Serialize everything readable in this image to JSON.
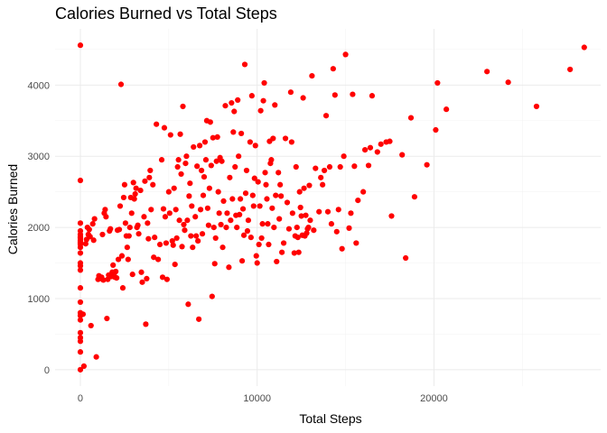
{
  "chart_data": {
    "type": "scatter",
    "title": "Calories Burned vs Total Steps",
    "xlabel": "Total Steps",
    "ylabel": "Calories Burned",
    "xlim": [
      -1430,
      29430
    ],
    "ylim": [
      -230,
      4790
    ],
    "xticks": [
      0,
      10000,
      20000
    ],
    "yticks": [
      0,
      1000,
      2000,
      3000,
      4000
    ],
    "grid": true,
    "point_color": "#ff0000",
    "points": [
      [
        0,
        4560
      ],
      [
        0,
        2660
      ],
      [
        0,
        2060
      ],
      [
        0,
        1950
      ],
      [
        0,
        1900
      ],
      [
        0,
        1870
      ],
      [
        0,
        1850
      ],
      [
        0,
        1820
      ],
      [
        0,
        1800
      ],
      [
        0,
        1780
      ],
      [
        0,
        1760
      ],
      [
        0,
        1720
      ],
      [
        0,
        1640
      ],
      [
        0,
        1500
      ],
      [
        0,
        1460
      ],
      [
        0,
        1400
      ],
      [
        0,
        1150
      ],
      [
        0,
        950
      ],
      [
        0,
        800
      ],
      [
        0,
        760
      ],
      [
        0,
        700
      ],
      [
        0,
        520
      ],
      [
        0,
        450
      ],
      [
        0,
        400
      ],
      [
        0,
        250
      ],
      [
        0,
        0
      ],
      [
        150,
        780
      ],
      [
        200,
        50
      ],
      [
        300,
        1770
      ],
      [
        350,
        1830
      ],
      [
        400,
        2000
      ],
      [
        450,
        1900
      ],
      [
        500,
        1970
      ],
      [
        550,
        1870
      ],
      [
        600,
        620
      ],
      [
        700,
        2050
      ],
      [
        750,
        1820
      ],
      [
        800,
        2120
      ],
      [
        900,
        180
      ],
      [
        1000,
        1270
      ],
      [
        1050,
        1320
      ],
      [
        1100,
        1280
      ],
      [
        1200,
        1300
      ],
      [
        1250,
        1900
      ],
      [
        1300,
        1260
      ],
      [
        1350,
        2200
      ],
      [
        1400,
        2250
      ],
      [
        1450,
        2150
      ],
      [
        1500,
        720
      ],
      [
        1550,
        1270
      ],
      [
        1600,
        1330
      ],
      [
        1650,
        1950
      ],
      [
        1700,
        1980
      ],
      [
        1750,
        1310
      ],
      [
        1800,
        1370
      ],
      [
        1850,
        1470
      ],
      [
        1900,
        1340
      ],
      [
        1950,
        1300
      ],
      [
        2000,
        1380
      ],
      [
        2050,
        1290
      ],
      [
        2100,
        1960
      ],
      [
        2150,
        1550
      ],
      [
        2200,
        1970
      ],
      [
        2250,
        2300
      ],
      [
        2300,
        4010
      ],
      [
        2350,
        1600
      ],
      [
        2400,
        1150
      ],
      [
        2450,
        2420
      ],
      [
        2500,
        2600
      ],
      [
        2550,
        2060
      ],
      [
        2600,
        1880
      ],
      [
        2650,
        1720
      ],
      [
        2700,
        1550
      ],
      [
        2750,
        1880
      ],
      [
        2800,
        2000
      ],
      [
        2850,
        2420
      ],
      [
        2900,
        2200
      ],
      [
        2950,
        1340
      ],
      [
        3000,
        2630
      ],
      [
        3050,
        2400
      ],
      [
        3100,
        2470
      ],
      [
        3150,
        2550
      ],
      [
        3200,
        2000
      ],
      [
        3250,
        2030
      ],
      [
        3300,
        1910
      ],
      [
        3400,
        2520
      ],
      [
        3450,
        1370
      ],
      [
        3500,
        1230
      ],
      [
        3600,
        2150
      ],
      [
        3650,
        2650
      ],
      [
        3700,
        640
      ],
      [
        3750,
        1280
      ],
      [
        3800,
        2060
      ],
      [
        3850,
        1840
      ],
      [
        3900,
        2700
      ],
      [
        3950,
        2800
      ],
      [
        4000,
        2250
      ],
      [
        4100,
        2600
      ],
      [
        4150,
        1580
      ],
      [
        4200,
        1860
      ],
      [
        4300,
        3450
      ],
      [
        4400,
        1550
      ],
      [
        4500,
        1760
      ],
      [
        4600,
        2950
      ],
      [
        4650,
        1300
      ],
      [
        4700,
        2260
      ],
      [
        4750,
        3400
      ],
      [
        4800,
        2150
      ],
      [
        4850,
        1780
      ],
      [
        4900,
        1270
      ],
      [
        5000,
        2500
      ],
      [
        5050,
        2200
      ],
      [
        5100,
        3300
      ],
      [
        5200,
        1810
      ],
      [
        5250,
        1750
      ],
      [
        5300,
        2550
      ],
      [
        5350,
        1480
      ],
      [
        5400,
        2250
      ],
      [
        5450,
        1850
      ],
      [
        5500,
        2850
      ],
      [
        5550,
        2950
      ],
      [
        5600,
        2100
      ],
      [
        5650,
        3310
      ],
      [
        5700,
        2750
      ],
      [
        5750,
        1730
      ],
      [
        5800,
        3700
      ],
      [
        5850,
        2040
      ],
      [
        5900,
        1960
      ],
      [
        5950,
        2900
      ],
      [
        6000,
        3000
      ],
      [
        6050,
        2100
      ],
      [
        6100,
        920
      ],
      [
        6150,
        2440
      ],
      [
        6200,
        2620
      ],
      [
        6250,
        1880
      ],
      [
        6300,
        2300
      ],
      [
        6350,
        1720
      ],
      [
        6400,
        3130
      ],
      [
        6500,
        2150
      ],
      [
        6550,
        1880
      ],
      [
        6600,
        2860
      ],
      [
        6650,
        1810
      ],
      [
        6700,
        710
      ],
      [
        6750,
        3150
      ],
      [
        6800,
        2250
      ],
      [
        6850,
        2800
      ],
      [
        6900,
        1910
      ],
      [
        6950,
        2450
      ],
      [
        7000,
        2710
      ],
      [
        7050,
        3200
      ],
      [
        7100,
        2950
      ],
      [
        7150,
        3500
      ],
      [
        7200,
        2270
      ],
      [
        7250,
        2030
      ],
      [
        7300,
        2550
      ],
      [
        7350,
        3480
      ],
      [
        7400,
        2870
      ],
      [
        7450,
        1030
      ],
      [
        7500,
        3260
      ],
      [
        7550,
        2000
      ],
      [
        7600,
        1490
      ],
      [
        7650,
        1850
      ],
      [
        7700,
        2930
      ],
      [
        7750,
        3270
      ],
      [
        7800,
        2500
      ],
      [
        7850,
        2200
      ],
      [
        7900,
        2980
      ],
      [
        7950,
        2040
      ],
      [
        8000,
        2930
      ],
      [
        8050,
        1720
      ],
      [
        8100,
        2370
      ],
      [
        8200,
        3710
      ],
      [
        8250,
        2000
      ],
      [
        8300,
        2200
      ],
      [
        8400,
        1440
      ],
      [
        8450,
        2700
      ],
      [
        8500,
        2100
      ],
      [
        8550,
        3750
      ],
      [
        8600,
        2400
      ],
      [
        8650,
        3340
      ],
      [
        8700,
        3630
      ],
      [
        8750,
        2850
      ],
      [
        8800,
        2170
      ],
      [
        8850,
        2000
      ],
      [
        8900,
        3790
      ],
      [
        8950,
        3000
      ],
      [
        9000,
        2180
      ],
      [
        9050,
        2400
      ],
      [
        9100,
        3320
      ],
      [
        9150,
        1530
      ],
      [
        9200,
        2260
      ],
      [
        9250,
        1890
      ],
      [
        9300,
        4290
      ],
      [
        9350,
        2480
      ],
      [
        9400,
        2800
      ],
      [
        9450,
        1950
      ],
      [
        9500,
        2100
      ],
      [
        9600,
        3200
      ],
      [
        9650,
        1860
      ],
      [
        9700,
        3850
      ],
      [
        9750,
        2450
      ],
      [
        9800,
        2300
      ],
      [
        9850,
        2690
      ],
      [
        9900,
        3150
      ],
      [
        9950,
        1600
      ],
      [
        10000,
        1500
      ],
      [
        10050,
        2640
      ],
      [
        10100,
        1760
      ],
      [
        10150,
        2300
      ],
      [
        10200,
        3640
      ],
      [
        10250,
        1850
      ],
      [
        10300,
        2050
      ],
      [
        10350,
        3780
      ],
      [
        10400,
        4030
      ],
      [
        10450,
        2770
      ],
      [
        10500,
        2600
      ],
      [
        10550,
        2400
      ],
      [
        10600,
        2050
      ],
      [
        10650,
        1760
      ],
      [
        10700,
        3210
      ],
      [
        10750,
        2900
      ],
      [
        10800,
        2950
      ],
      [
        10850,
        2270
      ],
      [
        10900,
        3250
      ],
      [
        10950,
        2000
      ],
      [
        11000,
        3720
      ],
      [
        11050,
        2450
      ],
      [
        11100,
        1520
      ],
      [
        11200,
        2770
      ],
      [
        11250,
        2120
      ],
      [
        11300,
        2600
      ],
      [
        11350,
        2440
      ],
      [
        11400,
        1650
      ],
      [
        11500,
        1780
      ],
      [
        11600,
        3250
      ],
      [
        11700,
        2350
      ],
      [
        11800,
        1980
      ],
      [
        11900,
        3900
      ],
      [
        11950,
        3200
      ],
      [
        12000,
        2200
      ],
      [
        12100,
        1640
      ],
      [
        12150,
        1880
      ],
      [
        12200,
        2850
      ],
      [
        12250,
        2000
      ],
      [
        12300,
        1860
      ],
      [
        12350,
        1650
      ],
      [
        12400,
        2500
      ],
      [
        12450,
        2280
      ],
      [
        12500,
        2160
      ],
      [
        12550,
        1890
      ],
      [
        12600,
        3820
      ],
      [
        12650,
        2550
      ],
      [
        12700,
        1880
      ],
      [
        12750,
        2170
      ],
      [
        12800,
        1920
      ],
      [
        12850,
        1980
      ],
      [
        12900,
        2000
      ],
      [
        12950,
        2590
      ],
      [
        13000,
        2100
      ],
      [
        13100,
        4130
      ],
      [
        13200,
        1960
      ],
      [
        13300,
        2830
      ],
      [
        13500,
        2220
      ],
      [
        13600,
        2700
      ],
      [
        13700,
        2600
      ],
      [
        13800,
        2800
      ],
      [
        13900,
        3570
      ],
      [
        14000,
        2220
      ],
      [
        14100,
        2850
      ],
      [
        14200,
        2050
      ],
      [
        14300,
        4230
      ],
      [
        14400,
        3860
      ],
      [
        14500,
        1940
      ],
      [
        14600,
        2250
      ],
      [
        14700,
        2850
      ],
      [
        14800,
        1700
      ],
      [
        14900,
        3000
      ],
      [
        15000,
        4430
      ],
      [
        15200,
        1990
      ],
      [
        15300,
        2200
      ],
      [
        15400,
        3870
      ],
      [
        15500,
        2860
      ],
      [
        15600,
        1780
      ],
      [
        15700,
        2380
      ],
      [
        16000,
        2500
      ],
      [
        16100,
        3090
      ],
      [
        16300,
        2870
      ],
      [
        16400,
        3120
      ],
      [
        16500,
        3850
      ],
      [
        16800,
        3060
      ],
      [
        17000,
        3170
      ],
      [
        17300,
        3200
      ],
      [
        17500,
        3210
      ],
      [
        17600,
        2160
      ],
      [
        18200,
        3020
      ],
      [
        18400,
        1570
      ],
      [
        18700,
        3540
      ],
      [
        18900,
        2430
      ],
      [
        19600,
        2880
      ],
      [
        20100,
        3370
      ],
      [
        20200,
        4030
      ],
      [
        20700,
        3660
      ],
      [
        23000,
        4190
      ],
      [
        24200,
        4040
      ],
      [
        25800,
        3700
      ],
      [
        27700,
        4220
      ],
      [
        28500,
        4530
      ]
    ]
  }
}
